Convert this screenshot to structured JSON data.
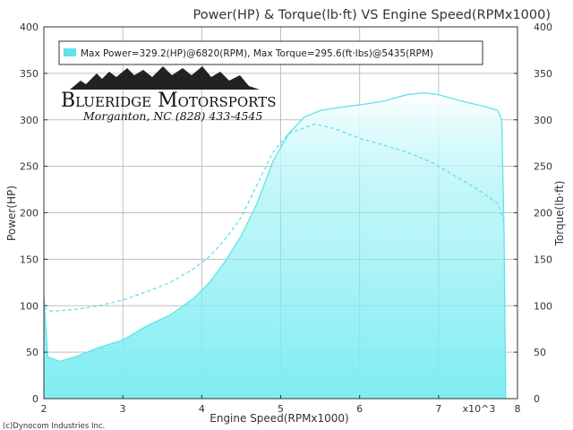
{
  "chart_data": {
    "type": "area",
    "title": "Power(HP) & Torque(lb·ft) VS Engine Speed(RPMx1000)",
    "xlabel": "Engine Speed(RPMx1000)",
    "x_unit_label": "x10^3",
    "ylabel_left": "Power(HP)",
    "ylabel_right": "Torque(lb·ft)",
    "xlim": [
      2,
      8
    ],
    "ylim": [
      0,
      400
    ],
    "x_ticks": [
      "2",
      "3",
      "4",
      "5",
      "6",
      "7",
      "8"
    ],
    "y_ticks": [
      "0",
      "50",
      "100",
      "150",
      "200",
      "250",
      "300",
      "350",
      "400"
    ],
    "grid": true,
    "legend": {
      "text": "Max Power=329.2(HP)@6820(RPM), Max Torque=295.6(ft·lbs)@5435(RPM)",
      "position": "top-left"
    },
    "series": [
      {
        "name": "Power",
        "style": "solid-filled",
        "color": "#5ee3ea",
        "fill": "#7eedf2",
        "points": [
          [
            2.0,
            110
          ],
          [
            2.05,
            45
          ],
          [
            2.2,
            40
          ],
          [
            2.4,
            45
          ],
          [
            2.7,
            55
          ],
          [
            3.0,
            63
          ],
          [
            3.3,
            78
          ],
          [
            3.6,
            90
          ],
          [
            3.9,
            108
          ],
          [
            4.1,
            125
          ],
          [
            4.3,
            148
          ],
          [
            4.5,
            175
          ],
          [
            4.7,
            210
          ],
          [
            4.9,
            255
          ],
          [
            5.1,
            285
          ],
          [
            5.3,
            303
          ],
          [
            5.5,
            310
          ],
          [
            5.8,
            314
          ],
          [
            6.0,
            316
          ],
          [
            6.3,
            320
          ],
          [
            6.6,
            327
          ],
          [
            6.82,
            329.2
          ],
          [
            7.0,
            327
          ],
          [
            7.3,
            320
          ],
          [
            7.6,
            314
          ],
          [
            7.75,
            310
          ],
          [
            7.8,
            300
          ],
          [
            7.83,
            180
          ],
          [
            7.85,
            0
          ]
        ]
      },
      {
        "name": "Torque",
        "style": "dashed",
        "color": "#5ee3ea",
        "points": [
          [
            2.0,
            98
          ],
          [
            2.1,
            94
          ],
          [
            2.4,
            96
          ],
          [
            2.7,
            100
          ],
          [
            3.0,
            106
          ],
          [
            3.3,
            115
          ],
          [
            3.6,
            125
          ],
          [
            3.9,
            140
          ],
          [
            4.1,
            153
          ],
          [
            4.3,
            172
          ],
          [
            4.5,
            195
          ],
          [
            4.7,
            230
          ],
          [
            4.9,
            265
          ],
          [
            5.1,
            285
          ],
          [
            5.435,
            295.6
          ],
          [
            5.7,
            290
          ],
          [
            6.0,
            280
          ],
          [
            6.3,
            273
          ],
          [
            6.6,
            265
          ],
          [
            6.9,
            255
          ],
          [
            7.2,
            240
          ],
          [
            7.5,
            225
          ],
          [
            7.75,
            210
          ],
          [
            7.83,
            190
          ]
        ]
      }
    ]
  },
  "logo": {
    "name": "Blueridge Motorsports",
    "address": "Morganton, NC (828) 433-4545"
  },
  "footer": {
    "copyright": "(c)Dynocom Industries Inc."
  }
}
